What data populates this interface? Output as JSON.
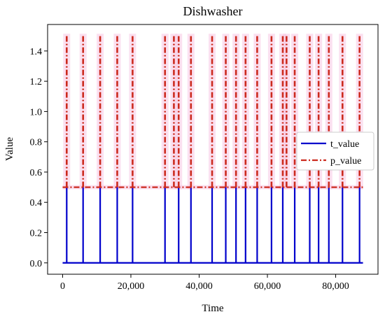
{
  "chart_data": {
    "type": "line",
    "title": "Dishwasher",
    "xlabel": "Time",
    "ylabel": "Value",
    "xlim": [
      -4400,
      92400
    ],
    "ylim": [
      -0.075,
      1.575
    ],
    "x_ticks": [
      0,
      20000,
      40000,
      60000,
      80000
    ],
    "x_tick_labels": [
      "0",
      "20,000",
      "40,000",
      "60,000",
      "80,000"
    ],
    "y_ticks": [
      0.0,
      0.2,
      0.4,
      0.6,
      0.8,
      1.0,
      1.2,
      1.4
    ],
    "y_tick_labels": [
      "0.0",
      "0.2",
      "0.4",
      "0.6",
      "0.8",
      "1.0",
      "1.2",
      "1.4"
    ],
    "legend_position": "center-right",
    "series": [
      {
        "name": "t_value",
        "color": "#0000cc",
        "style": "solid",
        "baseline": 0.0,
        "x_range": [
          0,
          88000
        ],
        "spike_value": 0.5,
        "spike_x": [
          1200,
          6000,
          11000,
          16000,
          20500,
          30000,
          34000,
          37600,
          43800,
          47800,
          50800,
          53600,
          57000,
          61200,
          64500,
          68000,
          72400,
          75000,
          78000,
          82000,
          87000
        ],
        "spike_values": [
          0.5,
          0.5,
          0.5,
          0.5,
          0.5,
          0.5,
          0.5,
          0.5,
          0.5,
          0.5,
          0.5,
          0.5,
          0.5,
          0.5,
          0.5,
          0.5,
          0.5,
          0.5,
          0.5,
          0.5,
          0.5
        ]
      },
      {
        "name": "p_value",
        "color": "#cc2a1e",
        "style": "dashdot",
        "baseline": 0.5,
        "x_range": [
          0,
          88000
        ],
        "spike_x": [
          1200,
          6000,
          11000,
          16000,
          20500,
          30000,
          32600,
          34000,
          37600,
          43800,
          47800,
          50800,
          53600,
          57000,
          61200,
          64500,
          65600,
          68000,
          72400,
          75000,
          78000,
          82000,
          87000
        ],
        "spike_values": [
          1.5,
          1.5,
          1.5,
          1.5,
          1.5,
          1.5,
          1.5,
          1.5,
          1.5,
          1.5,
          1.5,
          1.5,
          1.5,
          1.5,
          1.5,
          1.5,
          1.5,
          1.5,
          1.5,
          1.5,
          1.5,
          1.5,
          1.5
        ]
      }
    ]
  }
}
